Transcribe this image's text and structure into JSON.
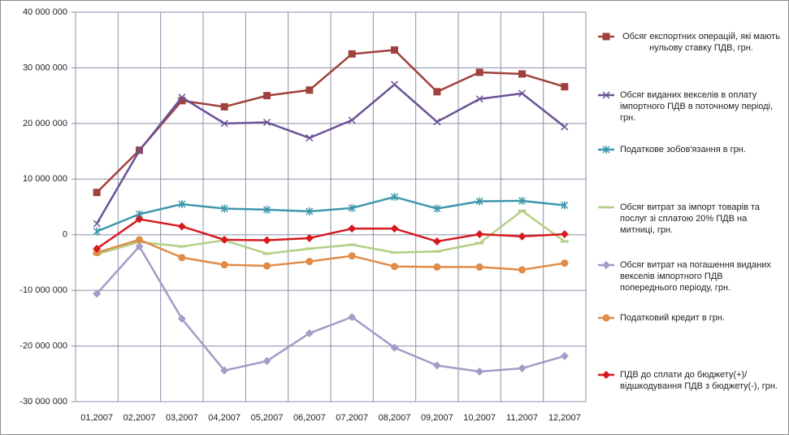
{
  "chart_data": {
    "type": "line",
    "categories": [
      "01,2007",
      "02,2007",
      "03,2007",
      "04,2007",
      "05,2007",
      "06,2007",
      "07,2007",
      "08,2007",
      "09,2007",
      "10,2007",
      "11,2007",
      "12,2007"
    ],
    "ylim": [
      -30000000,
      40000000
    ],
    "yticks": [
      {
        "value": -30000000,
        "label": "-30 000 000"
      },
      {
        "value": -20000000,
        "label": "-20 000 000"
      },
      {
        "value": -10000000,
        "label": "-10 000 000"
      },
      0,
      {
        "value": 10000000,
        "label": "10 000 000"
      },
      {
        "value": 20000000,
        "label": "20 000 000"
      },
      {
        "value": 30000000,
        "label": "30 000 000"
      },
      {
        "value": 40000000,
        "label": "40 000 000"
      }
    ],
    "grid": true,
    "legend": "right",
    "series": [
      {
        "name": "Обсяг експортних операцій, які мають нульову ставку ПДВ, грн.",
        "color": "#a0413c",
        "marker": "square",
        "values": [
          7600000,
          15200000,
          24100000,
          23000000,
          25000000,
          26000000,
          32500000,
          33200000,
          25700000,
          29200000,
          28900000,
          26600000
        ]
      },
      {
        "name": "Обсяг виданих векселів в оплату імпортного ПДВ в поточному періоді, грн.",
        "color": "#6b5296",
        "marker": "x",
        "values": [
          2000000,
          15100000,
          24700000,
          20000000,
          20200000,
          17400000,
          20600000,
          27000000,
          20300000,
          24400000,
          25400000,
          19400000
        ]
      },
      {
        "name": "Податкове зобов'язання в грн.",
        "color": "#3e97ac",
        "marker": "star",
        "values": [
          600000,
          3700000,
          5500000,
          4700000,
          4500000,
          4200000,
          4800000,
          6800000,
          4700000,
          6000000,
          6100000,
          5300000
        ]
      },
      {
        "name": "Обсяг витрат за імпорт товарів та послуг зі сплатою 20% ПДВ  на митниці, грн.",
        "color": "#b4cf86",
        "marker": "dash",
        "values": [
          -3500000,
          -1300000,
          -2100000,
          -1000000,
          -3400000,
          -2500000,
          -1800000,
          -3200000,
          -3000000,
          -1500000,
          4300000,
          -1200000
        ]
      },
      {
        "name": "Обсяг витрат на погашення виданих векселів імпортного ПДВ попереднього періоду, грн.",
        "color": "#a79ac6",
        "marker": "diamond",
        "values": [
          -10600000,
          -2100000,
          -15100000,
          -24400000,
          -22700000,
          -17700000,
          -14800000,
          -20300000,
          -23500000,
          -24600000,
          -24000000,
          -21800000
        ]
      },
      {
        "name": " Податковий кредит в грн.",
        "color": "#e08c48",
        "marker": "circle",
        "values": [
          -3200000,
          -900000,
          -4100000,
          -5400000,
          -5600000,
          -4800000,
          -3800000,
          -5700000,
          -5800000,
          -5800000,
          -6300000,
          -5100000
        ]
      },
      {
        "name": "ПДВ до сплати до бюджету(+)/відшкодування  ПДВ з бюджету(-), грн.",
        "color": "#d71a20",
        "marker": "diamond",
        "values": [
          -2500000,
          2800000,
          1500000,
          -900000,
          -1000000,
          -600000,
          1100000,
          1100000,
          -1200000,
          100000,
          -300000,
          100000
        ]
      }
    ]
  }
}
